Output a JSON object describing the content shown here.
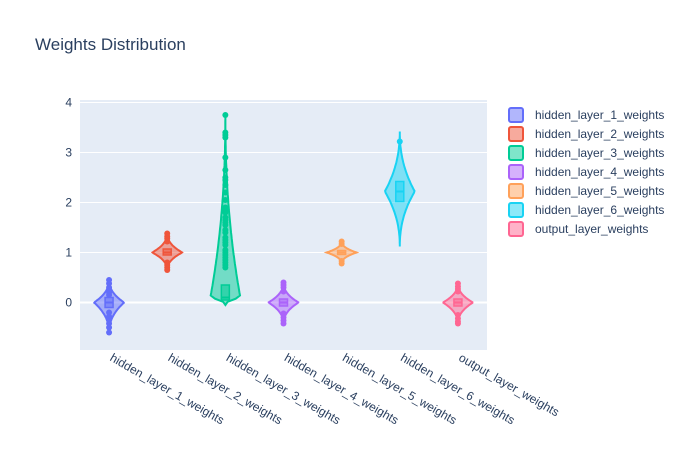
{
  "chart_data": {
    "type": "violin",
    "title": "Weights Distribution",
    "xlabel": "",
    "ylabel": "",
    "ylim": [
      -0.95,
      4.05
    ],
    "yticks": [
      0,
      1,
      2,
      3,
      4
    ],
    "grid": true,
    "legend_position": "top-right",
    "categories": [
      "hidden_layer_1_weights",
      "hidden_layer_2_weights",
      "hidden_layer_3_weights",
      "hidden_layer_4_weights",
      "hidden_layer_5_weights",
      "hidden_layer_6_weights",
      "output_layer_weights"
    ],
    "series": [
      {
        "name": "hidden_layer_1_weights",
        "color": "#636efa",
        "min": -0.6,
        "max": 0.45,
        "q1": -0.1,
        "median": 0.0,
        "q3": 0.1,
        "points": [
          0.45,
          0.38,
          0.3,
          0.25,
          0.2,
          0.15,
          -0.2,
          -0.28,
          -0.35,
          -0.42,
          -0.5,
          -0.6
        ]
      },
      {
        "name": "hidden_layer_2_weights",
        "color": "#ef553b",
        "min": 0.65,
        "max": 1.38,
        "q1": 0.95,
        "median": 1.0,
        "q3": 1.07,
        "points": [
          1.38,
          1.32,
          1.28,
          1.22,
          0.8,
          0.75,
          0.7,
          0.65
        ]
      },
      {
        "name": "hidden_layer_3_weights",
        "color": "#00cc96",
        "min": -0.05,
        "max": 3.75,
        "q1": 0.05,
        "median": 0.1,
        "q3": 0.35,
        "points": [
          3.75,
          3.4,
          3.35,
          3.3,
          2.9,
          2.65,
          2.5,
          2.45,
          2.35,
          2.2,
          2.05,
          1.9,
          1.85,
          1.8,
          1.7,
          1.65,
          1.6,
          1.55,
          1.45,
          1.4,
          1.3,
          1.25,
          1.2,
          1.15,
          1.05,
          1.0,
          0.95,
          0.9,
          0.85,
          0.8,
          0.75,
          0.7
        ]
      },
      {
        "name": "hidden_layer_4_weights",
        "color": "#ab63fa",
        "min": -0.42,
        "max": 0.4,
        "q1": -0.07,
        "median": 0.0,
        "q3": 0.07,
        "points": [
          0.4,
          0.35,
          0.3,
          0.22,
          -0.22,
          -0.3,
          -0.36,
          -0.42
        ]
      },
      {
        "name": "hidden_layer_5_weights",
        "color": "#ffa15a",
        "min": 0.78,
        "max": 1.22,
        "q1": 0.96,
        "median": 1.0,
        "q3": 1.04,
        "points": [
          1.22,
          1.17,
          0.83,
          0.78
        ]
      },
      {
        "name": "hidden_layer_6_weights",
        "color": "#19d3f3",
        "min": 1.12,
        "max": 3.42,
        "q1": 2.02,
        "median": 2.22,
        "q3": 2.42,
        "points": [
          3.22
        ]
      },
      {
        "name": "output_layer_weights",
        "color": "#ff6692",
        "min": -0.42,
        "max": 0.38,
        "q1": -0.07,
        "median": 0.0,
        "q3": 0.07,
        "points": [
          0.38,
          0.32,
          0.27,
          0.22,
          -0.25,
          -0.32,
          -0.38,
          -0.42
        ]
      }
    ]
  }
}
